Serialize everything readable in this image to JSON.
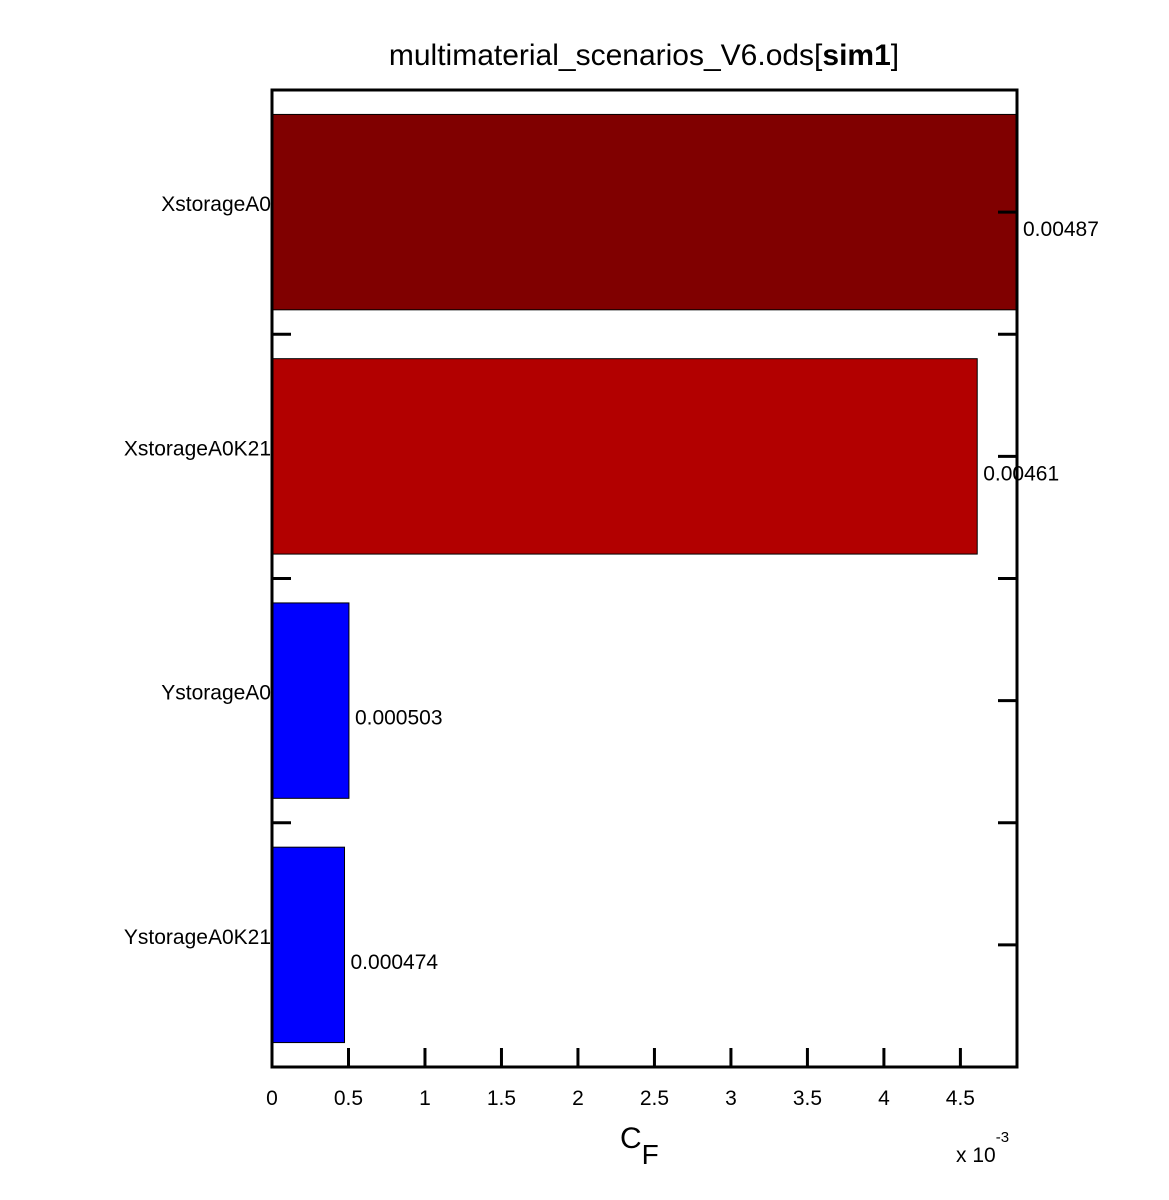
{
  "chart_data": {
    "type": "bar",
    "orientation": "horizontal",
    "title": {
      "prefix": "multimaterial_scenarios_V6.ods[",
      "bold": "sim1",
      "suffix": "]"
    },
    "categories": [
      "XstorageA0",
      "XstorageA0K21",
      "YstorageA0",
      "YstorageA0K21"
    ],
    "values": [
      0.00487,
      0.00461,
      0.000503,
      0.000474
    ],
    "value_labels": [
      "0.00487",
      "0.00461",
      "0.000503",
      "0.000474"
    ],
    "bar_colors": [
      "#800000",
      "#b20000",
      "#0000ff",
      "#0000ff"
    ],
    "xlabel": {
      "main": "C",
      "sub": "F"
    },
    "x_exponent": {
      "base": "x 10",
      "power": "-3"
    },
    "xlim": [
      0,
      0.00487
    ],
    "x_ticks": [
      0,
      0.0005,
      0.001,
      0.0015,
      0.002,
      0.0025,
      0.003,
      0.0035,
      0.004,
      0.0045
    ],
    "x_tick_labels": [
      "0",
      "0.5",
      "1",
      "1.5",
      "2",
      "2.5",
      "3",
      "3.5",
      "4",
      "4.5"
    ],
    "grid": false,
    "legend": "none"
  }
}
